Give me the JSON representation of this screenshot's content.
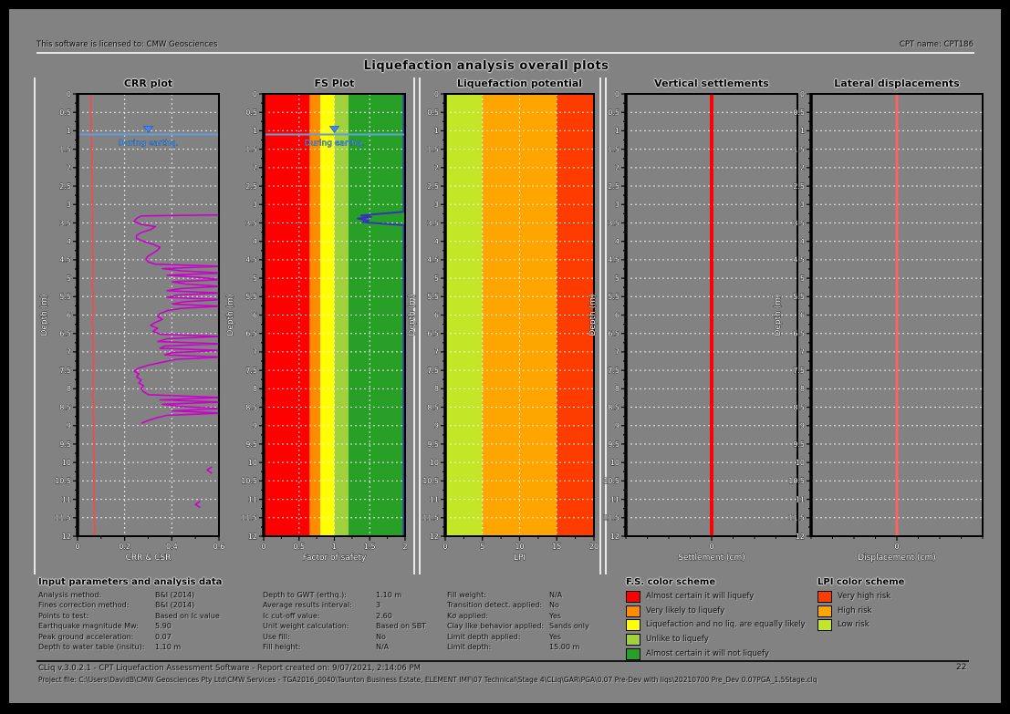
{
  "header": {
    "license": "This software is licensed to: CMW Geosciences",
    "cpt_name": "CPT name: CPT186"
  },
  "title": "Liquefaction analysis overall plots",
  "chart_data": [
    {
      "id": "crr",
      "type": "line",
      "title": "CRR plot",
      "xlabel": "CRR & CSR",
      "ylabel": "Depth (m)",
      "xlim": [
        0,
        0.6
      ],
      "xticks": [
        0,
        0.2,
        0.4,
        0.6
      ],
      "x_minor_step": 0.1,
      "ylim": [
        0,
        12
      ],
      "ytick_step": 0.5,
      "grid": true,
      "water_table": {
        "depth_m": 1.1,
        "label": "During earthq."
      },
      "series": [
        {
          "name": "CSR",
          "color": "#ff4545",
          "width": 1.6,
          "segments": [
            [
              [
                0,
                0.057
              ],
              [
                0.5,
                0.057
              ],
              [
                1.0,
                0.058
              ],
              [
                1.1,
                0.059
              ],
              [
                1.5,
                0.06
              ],
              [
                2.0,
                0.061
              ],
              [
                2.5,
                0.062
              ],
              [
                3.0,
                0.063
              ],
              [
                3.2,
                0.066
              ],
              [
                3.4,
                0.063
              ],
              [
                3.8,
                0.065
              ],
              [
                4.2,
                0.064
              ],
              [
                4.6,
                0.066
              ],
              [
                5.0,
                0.065
              ],
              [
                5.2,
                0.062
              ],
              [
                5.4,
                0.067
              ],
              [
                5.6,
                0.064
              ],
              [
                5.8,
                0.068
              ],
              [
                6.0,
                0.065
              ],
              [
                6.2,
                0.062
              ],
              [
                6.4,
                0.067
              ],
              [
                6.6,
                0.063
              ],
              [
                6.8,
                0.068
              ],
              [
                7.0,
                0.064
              ],
              [
                7.2,
                0.069
              ],
              [
                7.4,
                0.065
              ],
              [
                7.6,
                0.068
              ],
              [
                7.8,
                0.066
              ],
              [
                8.0,
                0.067
              ],
              [
                8.2,
                0.063
              ],
              [
                8.4,
                0.069
              ],
              [
                8.6,
                0.065
              ],
              [
                8.8,
                0.068
              ],
              [
                9.0,
                0.067
              ],
              [
                9.5,
                0.068
              ],
              [
                10.0,
                0.069
              ],
              [
                10.5,
                0.07
              ],
              [
                11.0,
                0.071
              ],
              [
                11.5,
                0.072
              ],
              [
                12,
                0.073
              ]
            ]
          ]
        },
        {
          "name": "CRR",
          "color": "#cc00cc",
          "width": 1.6,
          "segments": [
            [
              [
                3.28,
                0.61
              ],
              [
                3.31,
                0.27
              ],
              [
                3.38,
                0.25
              ],
              [
                3.46,
                0.24
              ],
              [
                3.54,
                0.27
              ],
              [
                3.6,
                0.33
              ],
              [
                3.68,
                0.31
              ],
              [
                3.76,
                0.27
              ],
              [
                3.84,
                0.25
              ],
              [
                3.92,
                0.25
              ],
              [
                4.0,
                0.28
              ],
              [
                4.08,
                0.32
              ],
              [
                4.16,
                0.35
              ],
              [
                4.24,
                0.34
              ],
              [
                4.32,
                0.32
              ],
              [
                4.4,
                0.3
              ],
              [
                4.48,
                0.29
              ],
              [
                4.56,
                0.3
              ],
              [
                4.62,
                0.33
              ],
              [
                4.68,
                0.61
              ],
              [
                4.74,
                0.36
              ],
              [
                4.8,
                0.44
              ],
              [
                4.86,
                0.61
              ],
              [
                4.92,
                0.38
              ],
              [
                4.98,
                0.52
              ],
              [
                5.04,
                0.61
              ],
              [
                5.1,
                0.4
              ],
              [
                5.16,
                0.46
              ],
              [
                5.22,
                0.61
              ],
              [
                5.28,
                0.44
              ],
              [
                5.34,
                0.38
              ],
              [
                5.4,
                0.61
              ],
              [
                5.46,
                0.42
              ],
              [
                5.52,
                0.38
              ],
              [
                5.58,
                0.61
              ],
              [
                5.64,
                0.45
              ],
              [
                5.7,
                0.4
              ],
              [
                5.76,
                0.61
              ],
              [
                5.82,
                0.44
              ],
              [
                5.88,
                0.38
              ],
              [
                5.96,
                0.35
              ],
              [
                6.04,
                0.34
              ],
              [
                6.12,
                0.36
              ],
              [
                6.2,
                0.33
              ],
              [
                6.28,
                0.31
              ],
              [
                6.36,
                0.34
              ],
              [
                6.44,
                0.32
              ],
              [
                6.52,
                0.35
              ],
              [
                6.58,
                0.61
              ],
              [
                6.64,
                0.38
              ],
              [
                6.72,
                0.34
              ],
              [
                6.78,
                0.61
              ],
              [
                6.84,
                0.37
              ],
              [
                6.9,
                0.35
              ],
              [
                6.96,
                0.61
              ],
              [
                7.02,
                0.4
              ],
              [
                7.08,
                0.37
              ],
              [
                7.14,
                0.61
              ],
              [
                7.2,
                0.42
              ],
              [
                7.28,
                0.36
              ],
              [
                7.36,
                0.3
              ],
              [
                7.44,
                0.26
              ],
              [
                7.52,
                0.24
              ],
              [
                7.6,
                0.26
              ],
              [
                7.68,
                0.25
              ],
              [
                7.76,
                0.27
              ],
              [
                7.84,
                0.26
              ],
              [
                7.92,
                0.28
              ],
              [
                8.0,
                0.27
              ],
              [
                8.08,
                0.28
              ],
              [
                8.16,
                0.3
              ],
              [
                8.24,
                0.61
              ],
              [
                8.3,
                0.35
              ],
              [
                8.36,
                0.61
              ],
              [
                8.42,
                0.36
              ],
              [
                8.48,
                0.44
              ],
              [
                8.54,
                0.61
              ],
              [
                8.6,
                0.4
              ],
              [
                8.66,
                0.61
              ],
              [
                8.72,
                0.38
              ],
              [
                8.78,
                0.34
              ],
              [
                8.86,
                0.3
              ],
              [
                8.94,
                0.27
              ]
            ],
            [
              [
                10.12,
                0.57
              ],
              [
                10.2,
                0.55
              ],
              [
                10.3,
                0.57
              ]
            ],
            [
              [
                11.05,
                0.52
              ],
              [
                11.14,
                0.5
              ],
              [
                11.22,
                0.52
              ]
            ]
          ]
        }
      ]
    },
    {
      "id": "fs",
      "type": "line",
      "title": "FS Plot",
      "xlabel": "Factor of safety",
      "ylabel": "Depth (m)",
      "xlim": [
        0,
        2
      ],
      "xticks": [
        0,
        0.5,
        1,
        1.5,
        2
      ],
      "x_minor_step": 0.25,
      "ylim": [
        0,
        12
      ],
      "ytick_step": 0.5,
      "grid": true,
      "bands": [
        {
          "from": 0.0,
          "to": 0.65,
          "color": "#ff0000",
          "meaning": "Almost certain it will liquefy"
        },
        {
          "from": 0.65,
          "to": 0.8,
          "color": "#ff8c00",
          "meaning": "Very likely to liquefy"
        },
        {
          "from": 0.8,
          "to": 1.0,
          "color": "#ffff00",
          "meaning": "Liquefaction and no liq. are equally likely"
        },
        {
          "from": 1.0,
          "to": 1.2,
          "color": "#a0d03c",
          "meaning": "Unlike to liquefy"
        },
        {
          "from": 1.2,
          "to": 2.0,
          "color": "#28a028",
          "meaning": "Almost certain it will not liquefy"
        }
      ],
      "water_table": {
        "depth_m": 1.1,
        "label": "During earthq."
      },
      "series": [
        {
          "name": "Factor of safety",
          "color": "#3333bb",
          "width": 2,
          "segments": [
            [
              [
                0,
                1.98
              ],
              [
                3.2,
                1.98
              ],
              [
                3.26,
                1.6
              ],
              [
                3.3,
                1.38
              ],
              [
                3.34,
                1.52
              ],
              [
                3.38,
                1.33
              ],
              [
                3.44,
                1.48
              ],
              [
                3.48,
                1.4
              ],
              [
                3.52,
                1.68
              ],
              [
                3.56,
                1.98
              ],
              [
                12,
                1.98
              ]
            ]
          ]
        }
      ]
    },
    {
      "id": "lpi",
      "type": "line",
      "title": "Liquefaction potential",
      "xlabel": "LPI",
      "ylabel": "Depth (m)",
      "xlim": [
        0,
        20
      ],
      "xticks": [
        0,
        5,
        10,
        15,
        20
      ],
      "x_minor_step": 2.5,
      "ylim": [
        0,
        12
      ],
      "ytick_step": 0.5,
      "grid": true,
      "bands": [
        {
          "from": 0,
          "to": 5,
          "color": "#c3e626",
          "meaning": "Low risk"
        },
        {
          "from": 5,
          "to": 15,
          "color": "#ffa500",
          "meaning": "High risk"
        },
        {
          "from": 15,
          "to": 20,
          "color": "#ff3c00",
          "meaning": "Very high risk"
        }
      ],
      "series": []
    },
    {
      "id": "settlements",
      "type": "line",
      "title": "Vertical settlements",
      "xlabel": "Settlement (cm)",
      "ylabel": "Depth (m)",
      "xlim": [
        -1,
        1
      ],
      "xticks": [
        0
      ],
      "x_minor_step": 0.25,
      "ylim": [
        0,
        12
      ],
      "ytick_step": 0.5,
      "grid": true,
      "series": [
        {
          "name": "Settlement",
          "color": "#ff0000",
          "width": 4,
          "segments": [
            [
              [
                0,
                0
              ],
              [
                12,
                0
              ]
            ]
          ]
        }
      ]
    },
    {
      "id": "lateral",
      "type": "line",
      "title": "Lateral displacements",
      "xlabel": "Displacement (cm)",
      "ylabel": "Depth (m)",
      "xlim": [
        -1,
        1
      ],
      "xticks": [
        0
      ],
      "x_minor_step": 0.25,
      "ylim": [
        0,
        12
      ],
      "ytick_step": 0.5,
      "grid": true,
      "series": [
        {
          "name": "Displacement",
          "color": "#ff6060",
          "width": 3,
          "segments": [
            [
              [
                0,
                0
              ],
              [
                12,
                0
              ]
            ]
          ]
        }
      ]
    }
  ],
  "params": {
    "heading": "Input parameters and analysis data",
    "columns": [
      [
        {
          "label": "Analysis method:",
          "value": "B&I (2014)"
        },
        {
          "label": "Fines correction method:",
          "value": "B&I (2014)"
        },
        {
          "label": "Points to test:",
          "value": "Based on Ic value"
        },
        {
          "label": "Earthquake magnitude Mw:",
          "value": "5.90"
        },
        {
          "label": "Peak ground acceleration:",
          "value": "0.07"
        },
        {
          "label": "Depth to water table (insitu):",
          "value": "1.10 m"
        }
      ],
      [
        {
          "label": "Depth to GWT (erthq.):",
          "value": "1.10 m"
        },
        {
          "label": "Average results interval:",
          "value": "3"
        },
        {
          "label": "Ic cut-off value:",
          "value": "2.60"
        },
        {
          "label": "Unit weight calculation:",
          "value": "Based on SBT"
        },
        {
          "label": "Use fill:",
          "value": "No"
        },
        {
          "label": "Fill height:",
          "value": "N/A"
        }
      ],
      [
        {
          "label": "Fill weight:",
          "value": "N/A"
        },
        {
          "label": "Transition detect. applied:",
          "value": "No"
        },
        {
          "label": "Kσ applied:",
          "value": "Yes"
        },
        {
          "label": "Clay like behavior applied:",
          "value": "Sands only"
        },
        {
          "label": "Limit depth applied:",
          "value": "Yes"
        },
        {
          "label": "Limit depth:",
          "value": "15.00 m"
        }
      ]
    ]
  },
  "legends": {
    "fs": {
      "heading": "F.S. color scheme",
      "items": [
        {
          "color": "#ff0000",
          "label": "Almost certain it will liquefy"
        },
        {
          "color": "#ff8c00",
          "label": "Very likely to liquefy"
        },
        {
          "color": "#ffff00",
          "label": "Liquefaction and no liq. are equally likely"
        },
        {
          "color": "#a0d03c",
          "label": "Unlike to liquefy"
        },
        {
          "color": "#28a028",
          "label": "Almost certain it will not liquefy"
        }
      ]
    },
    "lpi": {
      "heading": "LPI color scheme",
      "items": [
        {
          "color": "#ff3c00",
          "label": "Very high risk"
        },
        {
          "color": "#ffa500",
          "label": "High risk"
        },
        {
          "color": "#c3e626",
          "label": "Low risk"
        }
      ]
    }
  },
  "footer": {
    "line1": "CLiq v.3.0.2.1 - CPT Liquefaction Assessment Software - Report created on: 9/07/2021, 2:14:06 PM",
    "line2": "Project file: C:\\Users\\DavidB\\CMW Geosciences Pty Ltd\\CMW Services - TGA2016_0040\\Taunton Business Estate, ELEMENT IMF\\07 Technical\\Stage 4\\CLiq\\GAR\\PGA\\0.07 Pre-Dev with liqs\\20210700 Pre_Dev 0.07PGA_1.5Stage.clq",
    "page": "22"
  }
}
